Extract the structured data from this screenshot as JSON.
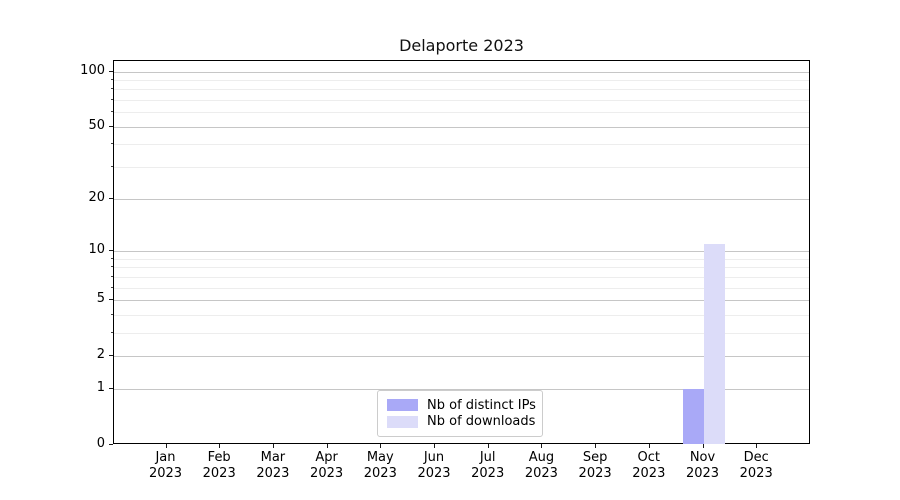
{
  "chart_data": {
    "type": "bar",
    "title": "Delaporte 2023",
    "categories": [
      "Jan",
      "Feb",
      "Mar",
      "Apr",
      "May",
      "Jun",
      "Jul",
      "Aug",
      "Sep",
      "Oct",
      "Nov",
      "Dec"
    ],
    "year": "2023",
    "series": [
      {
        "name": "Nb of distinct IPs",
        "color": "#a9a9f7",
        "values": [
          0,
          0,
          0,
          0,
          0,
          0,
          0,
          0,
          0,
          0,
          1,
          0
        ]
      },
      {
        "name": "Nb of downloads",
        "color": "#dcdcf9",
        "values": [
          0,
          0,
          0,
          0,
          0,
          0,
          0,
          0,
          0,
          0,
          11,
          0
        ]
      }
    ],
    "y_axis": {
      "scale": "log1p",
      "major_ticks": [
        0,
        1,
        2,
        5,
        10,
        20,
        50,
        100
      ],
      "minor_ticks": [
        3,
        4,
        6,
        7,
        8,
        9,
        30,
        40,
        60,
        70,
        80,
        90
      ],
      "ylim": [
        0,
        114
      ]
    },
    "xlabel": "",
    "ylabel": "",
    "grid": true,
    "legend_position": "lower-center"
  },
  "colors": {
    "background": "#ffffff",
    "spine": "#000000",
    "grid_major": "#c6c6c6",
    "grid_minor": "#ededed",
    "bar_distinct_ips": "#a9a9f7",
    "bar_downloads": "#dcdcf9",
    "legend_border": "#cccccc",
    "text": "#000000"
  }
}
